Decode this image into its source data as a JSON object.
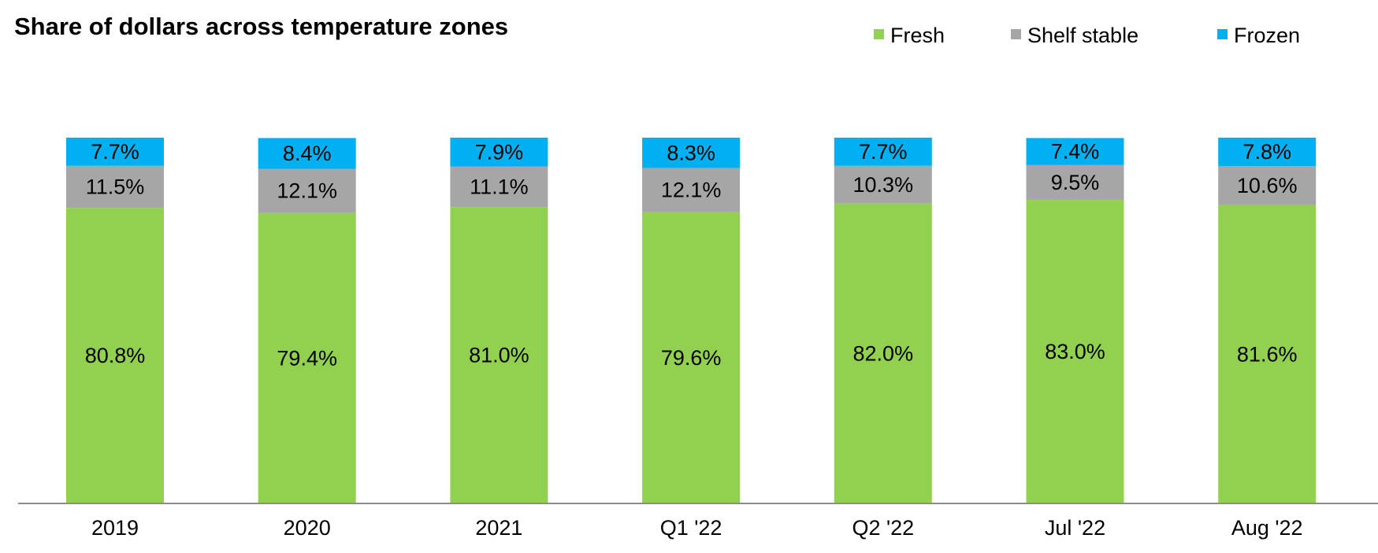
{
  "chart_data": {
    "type": "bar",
    "stacked": true,
    "title": "Share of dollars across temperature zones",
    "xlabel": "",
    "ylabel": "",
    "ylim": [
      0,
      100
    ],
    "grid": false,
    "legend_position": "top-right",
    "categories": [
      "2019",
      "2020",
      "2021",
      "Q1 '22",
      "Q2 '22",
      "Jul '22",
      "Aug '22"
    ],
    "series": [
      {
        "name": "Fresh",
        "color": "#92D050",
        "values": [
          80.8,
          79.4,
          81.0,
          79.6,
          82.0,
          83.0,
          81.6
        ],
        "labels": [
          "80.8%",
          "79.4%",
          "81.0%",
          "79.6%",
          "82.0%",
          "83.0%",
          "81.6%"
        ]
      },
      {
        "name": "Shelf stable",
        "color": "#A6A6A6",
        "values": [
          11.5,
          12.1,
          11.1,
          12.1,
          10.3,
          9.5,
          10.6
        ],
        "labels": [
          "11.5%",
          "12.1%",
          "11.1%",
          "12.1%",
          "10.3%",
          "9.5%",
          "10.6%"
        ]
      },
      {
        "name": "Frozen",
        "color": "#00B0F0",
        "values": [
          7.7,
          8.4,
          7.9,
          8.3,
          7.7,
          7.4,
          7.8
        ],
        "labels": [
          "7.7%",
          "8.4%",
          "7.9%",
          "8.3%",
          "7.7%",
          "7.4%",
          "7.8%"
        ]
      }
    ]
  }
}
